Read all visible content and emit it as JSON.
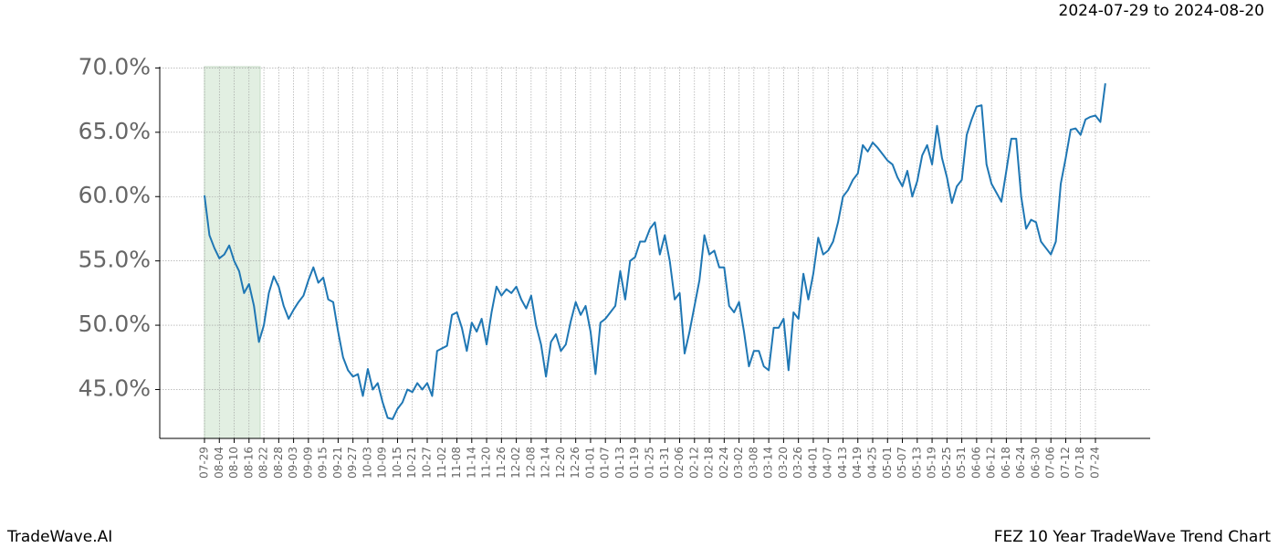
{
  "chart_data": {
    "type": "line",
    "subtitle": "2024-07-29 to 2024-08-20",
    "footer_left": "TradeWave.AI",
    "footer_right": "FEZ 10 Year TradeWave Trend Chart",
    "categories": [
      "07-29",
      null,
      null,
      "08-04",
      null,
      null,
      "08-10",
      null,
      null,
      "08-16",
      null,
      null,
      "08-22",
      null,
      null,
      "08-28",
      null,
      null,
      "09-03",
      null,
      null,
      "09-09",
      null,
      null,
      "09-15",
      null,
      null,
      "09-21",
      null,
      null,
      "09-27",
      null,
      null,
      "10-03",
      null,
      null,
      "10-09",
      null,
      null,
      "10-15",
      null,
      null,
      "10-21",
      null,
      null,
      "10-27",
      null,
      null,
      "11-02",
      null,
      null,
      "11-08",
      null,
      null,
      "11-14",
      null,
      null,
      "11-20",
      null,
      null,
      "11-26",
      null,
      null,
      "12-02",
      null,
      null,
      "12-08",
      null,
      null,
      "12-14",
      null,
      null,
      "12-20",
      null,
      null,
      "12-26",
      null,
      null,
      "01-01",
      null,
      null,
      "01-07",
      null,
      null,
      "01-13",
      null,
      null,
      "01-19",
      null,
      null,
      "01-25",
      null,
      null,
      "01-31",
      null,
      null,
      "02-06",
      null,
      null,
      "02-12",
      null,
      null,
      "02-18",
      null,
      null,
      "02-24",
      null,
      null,
      "03-02",
      null,
      null,
      "03-08",
      null,
      null,
      "03-14",
      null,
      null,
      "03-20",
      null,
      null,
      "03-26",
      null,
      null,
      "04-01",
      null,
      null,
      "04-07",
      null,
      null,
      "04-13",
      null,
      null,
      "04-19",
      null,
      null,
      "04-25",
      null,
      null,
      "05-01",
      null,
      null,
      "05-07",
      null,
      null,
      "05-13",
      null,
      null,
      "05-19",
      null,
      null,
      "05-25",
      null,
      null,
      "05-31",
      null,
      null,
      "06-06",
      null,
      null,
      "06-12",
      null,
      null,
      "06-18",
      null,
      null,
      "06-24",
      null,
      null,
      "06-30",
      null,
      null,
      "07-06",
      null,
      null,
      "07-12",
      null,
      null,
      "07-18",
      null,
      null,
      "07-24",
      null,
      null
    ],
    "series": [
      {
        "color": "#1f77b4",
        "values": [
          60.1,
          57.0,
          56.0,
          55.2,
          55.5,
          56.2,
          55.0,
          54.2,
          52.5,
          53.2,
          51.5,
          48.7,
          50.0,
          52.5,
          53.8,
          53.0,
          51.5,
          50.5,
          51.2,
          51.8,
          52.3,
          53.5,
          54.5,
          53.3,
          53.7,
          52.0,
          51.8,
          49.5,
          47.5,
          46.5,
          46.0,
          46.2,
          44.5,
          46.6,
          45.0,
          45.5,
          44.0,
          42.8,
          42.7,
          43.5,
          44.0,
          45.0,
          44.8,
          45.5,
          45.0,
          45.5,
          44.5,
          48.0,
          48.2,
          48.4,
          50.8,
          51.0,
          49.8,
          48.0,
          50.2,
          49.5,
          50.5,
          48.5,
          51.0,
          53.0,
          52.3,
          52.8,
          52.5,
          53.0,
          52.0,
          51.3,
          52.3,
          50.0,
          48.5,
          46.0,
          48.7,
          49.3,
          48.0,
          48.5,
          50.3,
          51.8,
          50.8,
          51.5,
          49.5,
          46.2,
          50.2,
          50.5,
          51.0,
          51.5,
          54.2,
          52.0,
          55.0,
          55.3,
          56.5,
          56.5,
          57.5,
          58.0,
          55.5,
          57.0,
          55.0,
          52.0,
          52.5,
          47.8,
          49.5,
          51.5,
          53.5,
          57.0,
          55.5,
          55.8,
          54.5,
          54.5,
          51.5,
          51.0,
          51.8,
          49.5,
          46.8,
          48.0,
          48.0,
          46.8,
          46.5,
          49.8,
          49.8,
          50.5,
          46.5,
          51.0,
          50.5,
          54.0,
          52.0,
          54.0,
          56.8,
          55.5,
          55.8,
          56.5,
          58.0,
          60.0,
          60.5,
          61.3,
          61.8,
          64.0,
          63.5,
          64.2,
          63.8,
          63.3,
          62.8,
          62.5,
          61.5,
          60.8,
          62.0,
          60.0,
          61.2,
          63.2,
          64.0,
          62.5,
          65.5,
          63.0,
          61.5,
          59.5,
          60.8,
          61.3,
          64.8,
          66.0,
          67.0,
          67.1,
          62.5,
          61.0,
          60.3,
          59.6,
          62.0,
          64.5,
          64.5,
          60.0,
          57.5,
          58.2,
          58.0,
          56.5,
          56.0,
          55.5,
          56.5,
          61.0,
          63.0,
          65.2,
          65.3,
          64.8,
          66.0,
          66.2,
          66.3,
          65.8,
          68.8
        ]
      }
    ],
    "ylim": [
      41.2,
      70.1
    ],
    "yticks": [
      {
        "value": 45,
        "label": "45.0%"
      },
      {
        "value": 50,
        "label": "50.0%"
      },
      {
        "value": 55,
        "label": "55.0%"
      },
      {
        "value": 60,
        "label": "60.0%"
      },
      {
        "value": 65,
        "label": "65.0%"
      },
      {
        "value": 70,
        "label": "70.0%"
      }
    ],
    "grid": true
  }
}
